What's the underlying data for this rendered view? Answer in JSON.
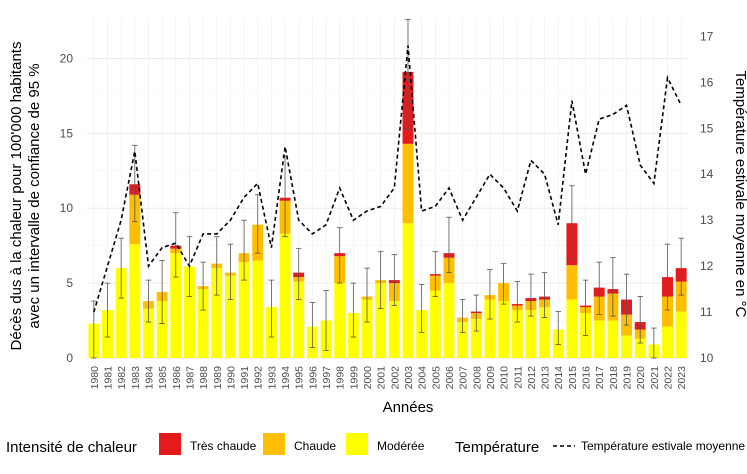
{
  "chart_data": {
    "type": "bar",
    "stacked": true,
    "xlabel": "Années",
    "ylabel_left_line1": "Décès dus à la chaleur pour 100'000 habitants",
    "ylabel_left_line2": "avec un intervalle de confiance de 95 %",
    "ylabel_right": "Température estivale moyenne en °C",
    "ylim": [
      0,
      22.7
    ],
    "yticks": [
      0,
      5,
      10,
      15,
      20
    ],
    "y2lim": [
      10,
      17.4
    ],
    "y2ticks": [
      10,
      11,
      12,
      13,
      14,
      15,
      16,
      17
    ],
    "grid": true,
    "legend_position": "bottom",
    "colors": {
      "moderee": "#ffff00",
      "chaude": "#ffbe00",
      "tres_chaude": "#e41a1c",
      "temperature": "#000000"
    },
    "legend": {
      "intensity_title": "Intensité de chaleur",
      "tres_chaude": "Très chaude",
      "chaude": "Chaude",
      "moderee": "Modérée",
      "temperature_title": "Température",
      "temperature_label": "Température estivale moyenne"
    },
    "years": [
      "1980",
      "1981",
      "1982",
      "1983",
      "1984",
      "1985",
      "1986",
      "1987",
      "1988",
      "1989",
      "1990",
      "1991",
      "1992",
      "1993",
      "1994",
      "1995",
      "1996",
      "1997",
      "1998",
      "1999",
      "2000",
      "2001",
      "2002",
      "2003",
      "2004",
      "2005",
      "2006",
      "2007",
      "2008",
      "2009",
      "2010",
      "2011",
      "2012",
      "2013",
      "2014",
      "2015",
      "2016",
      "2017",
      "2018",
      "2019",
      "2020",
      "2021",
      "2022",
      "2023"
    ],
    "series": [
      {
        "name": "Modérée",
        "values": [
          2.3,
          3.2,
          6.0,
          7.6,
          3.3,
          3.8,
          7.0,
          6.1,
          4.6,
          6.0,
          5.5,
          6.4,
          6.5,
          3.4,
          8.3,
          5.1,
          2.1,
          2.5,
          5.0,
          3.0,
          3.9,
          5.0,
          3.8,
          9.0,
          3.2,
          4.5,
          5.0,
          2.4,
          2.6,
          3.9,
          3.8,
          3.2,
          3.2,
          3.4,
          1.9,
          3.9,
          3.0,
          2.5,
          2.5,
          1.5,
          1.3,
          0.9,
          2.1,
          3.1
        ]
      },
      {
        "name": "Chaude",
        "values": [
          0.0,
          0.0,
          0.0,
          3.3,
          0.5,
          0.6,
          0.3,
          0.0,
          0.2,
          0.3,
          0.2,
          0.6,
          2.4,
          0.0,
          2.2,
          0.3,
          0.0,
          0.0,
          1.8,
          0.0,
          0.2,
          0.2,
          1.2,
          5.3,
          0.0,
          1.0,
          1.7,
          0.3,
          0.4,
          0.3,
          1.2,
          0.3,
          0.6,
          0.5,
          0.0,
          2.3,
          0.4,
          1.6,
          1.8,
          1.4,
          0.6,
          0.0,
          2.0,
          2.0
        ]
      },
      {
        "name": "Très chaude",
        "values": [
          0.0,
          0.0,
          0.0,
          0.7,
          0.0,
          0.0,
          0.2,
          0.0,
          0.0,
          0.0,
          0.0,
          0.0,
          0.0,
          0.0,
          0.2,
          0.3,
          0.0,
          0.0,
          0.2,
          0.0,
          0.0,
          0.0,
          0.2,
          4.8,
          0.0,
          0.1,
          0.3,
          0.0,
          0.1,
          0.0,
          0.0,
          0.1,
          0.2,
          0.2,
          0.0,
          2.8,
          0.1,
          0.6,
          0.3,
          1.0,
          0.5,
          0.0,
          1.3,
          0.9
        ]
      }
    ],
    "ci_low": [
      0.0,
      1.4,
      4.0,
      9.1,
      2.4,
      2.3,
      5.4,
      4.1,
      3.2,
      4.2,
      3.9,
      5.2,
      7.0,
      1.4,
      8.1,
      3.9,
      0.7,
      0.5,
      5.0,
      1.4,
      2.4,
      3.3,
      3.5,
      15.3,
      1.7,
      4.1,
      5.7,
      1.7,
      1.8,
      2.6,
      3.6,
      2.4,
      2.8,
      2.7,
      0.9,
      6.6,
      1.5,
      2.9,
      2.8,
      2.2,
      1.0,
      0.0,
      3.2,
      4.2
    ],
    "ci_high": [
      3.8,
      5.0,
      8.0,
      14.2,
      5.2,
      6.5,
      9.7,
      8.1,
      6.4,
      8.1,
      7.6,
      9.2,
      10.9,
      5.2,
      13.5,
      7.3,
      3.7,
      4.5,
      8.7,
      5.0,
      6.0,
      7.1,
      6.9,
      22.6,
      4.9,
      7.1,
      9.4,
      3.9,
      4.2,
      5.9,
      6.3,
      5.1,
      5.6,
      5.7,
      3.1,
      11.5,
      5.2,
      6.4,
      6.7,
      5.6,
      4.1,
      2.0,
      7.6,
      8.0
    ],
    "temperature": [
      11.0,
      12.0,
      13.0,
      14.5,
      12.0,
      12.4,
      12.5,
      12.0,
      12.7,
      12.7,
      13.0,
      13.5,
      13.8,
      12.4,
      14.6,
      13.0,
      12.7,
      12.9,
      13.7,
      13.0,
      13.2,
      13.3,
      13.7,
      16.8,
      13.2,
      13.3,
      13.7,
      13.0,
      13.5,
      14.0,
      13.7,
      13.2,
      14.3,
      14.0,
      12.9,
      15.6,
      14.0,
      15.2,
      15.3,
      15.5,
      14.2,
      13.8,
      16.1,
      15.5
    ]
  }
}
